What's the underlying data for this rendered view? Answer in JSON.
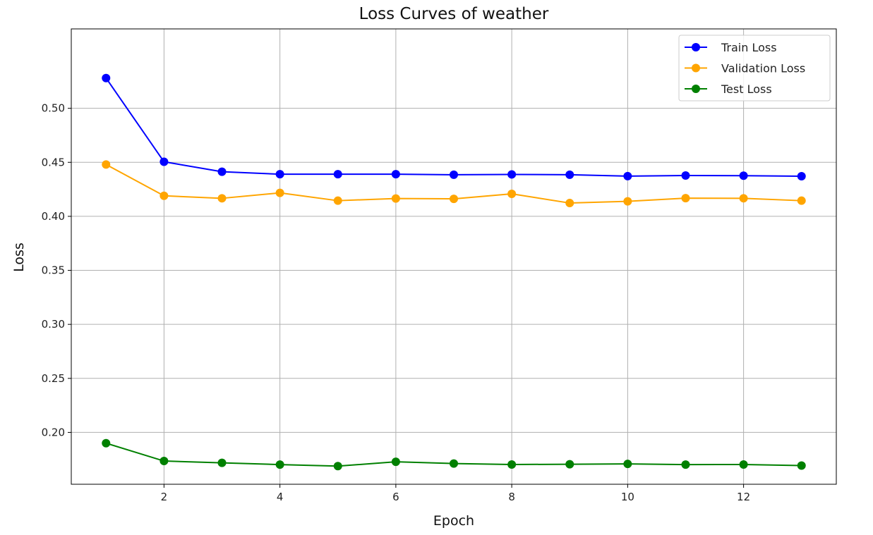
{
  "chart_data": {
    "type": "line",
    "title": "Loss Curves of weather",
    "xlabel": "Epoch",
    "ylabel": "Loss",
    "xlim": [
      0.4,
      13.6
    ],
    "ylim": [
      0.152,
      0.5735
    ],
    "xticks": [
      2,
      4,
      6,
      8,
      10,
      12
    ],
    "yticks": [
      0.2,
      0.25,
      0.3,
      0.35,
      0.4,
      0.45,
      0.5
    ],
    "grid": true,
    "legend_position": "top-right",
    "x": [
      1,
      2,
      3,
      4,
      5,
      6,
      7,
      8,
      9,
      10,
      11,
      12,
      13
    ],
    "series": [
      {
        "name": "Train Loss",
        "color": "#0000ff",
        "values": [
          0.528,
          0.4505,
          0.4413,
          0.439,
          0.439,
          0.439,
          0.4385,
          0.4388,
          0.4385,
          0.4372,
          0.4378,
          0.4376,
          0.4371
        ]
      },
      {
        "name": "Validation Loss",
        "color": "#ffa500",
        "values": [
          0.448,
          0.419,
          0.4167,
          0.4217,
          0.4145,
          0.4165,
          0.4162,
          0.4208,
          0.4123,
          0.4139,
          0.4168,
          0.4167,
          0.4145
        ]
      },
      {
        "name": "Test Loss",
        "color": "#008000",
        "values": [
          0.19,
          0.1735,
          0.1718,
          0.1702,
          0.1688,
          0.1728,
          0.1712,
          0.1703,
          0.1705,
          0.1708,
          0.1702,
          0.1703,
          0.1693
        ]
      }
    ]
  }
}
